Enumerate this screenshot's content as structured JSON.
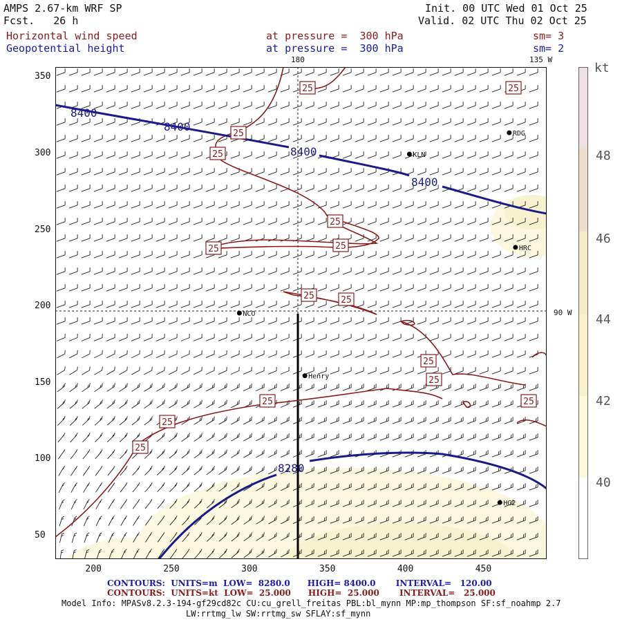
{
  "header": {
    "model": "AMPS 2.67-km WRF SP",
    "forecast": "Fcst.   26 h",
    "init": "Init. 00 UTC Wed 01 Oct 25",
    "valid": "Valid. 02 UTC Thu 02 Oct 25",
    "field1": {
      "name": "Horizontal wind speed",
      "level": "at pressure =  300 hPa",
      "sm": "sm= 3"
    },
    "field2": {
      "name": "Geopotential height",
      "level": "at pressure =  300 hPa",
      "sm": "sm= 2"
    }
  },
  "map": {
    "lon_labels": {
      "top_180": "180",
      "top_135w": "135 W",
      "right_90w": "90 W"
    },
    "x_ticks": [
      "200",
      "250",
      "300",
      "350",
      "400",
      "450"
    ],
    "y_ticks": [
      "350",
      "300",
      "250",
      "200",
      "150",
      "100",
      "50"
    ],
    "stations": [
      {
        "name": "RDG",
        "gx": 466,
        "gy": 314
      },
      {
        "name": "KLN",
        "gx": 402,
        "gy": 300
      },
      {
        "name": "HRC",
        "gx": 470,
        "gy": 239
      },
      {
        "name": "NCO",
        "gx": 293,
        "gy": 196
      },
      {
        "name": "Henry",
        "gx": 335,
        "gy": 155
      },
      {
        "name": "HG2",
        "gx": 460,
        "gy": 72
      }
    ],
    "height_contour_labels": [
      "8400",
      "8400",
      "8400",
      "8400",
      "8280"
    ],
    "speed_contour_labels": [
      "25",
      "25",
      "25",
      "25",
      "25",
      "25",
      "25",
      "25",
      "25",
      "25",
      "25",
      "25",
      "25",
      "25",
      "25"
    ]
  },
  "colorbar": {
    "unit": "kt",
    "ticks": [
      "48",
      "46",
      "44",
      "42",
      "40"
    ],
    "colors": [
      "#ede0e3",
      "#eedfcc",
      "#f5ecc4",
      "#f7f1cc",
      "#fbf8dc",
      "#ffffff"
    ]
  },
  "footer": {
    "contours_m": "CONTOURS:  UNITS=m  LOW=  8280.0      HIGH= 8400.0       INTERVAL=   120.00",
    "contours_kt": "CONTOURS:  UNITS=kt  LOW=  25.000      HIGH=  25.000       INTERVAL=   25.000",
    "model_info_1": "Model Info: MPASv8.2.3-194-gf29cd82c CU:cu_grell_freitas PBL:bl_mynn MP:mp_thompson SF:sf_noahmp 2.7",
    "model_info_2": "LW:rrtmg_lw SW:rrtmg_sw SFLAY:sf_mynn"
  }
}
